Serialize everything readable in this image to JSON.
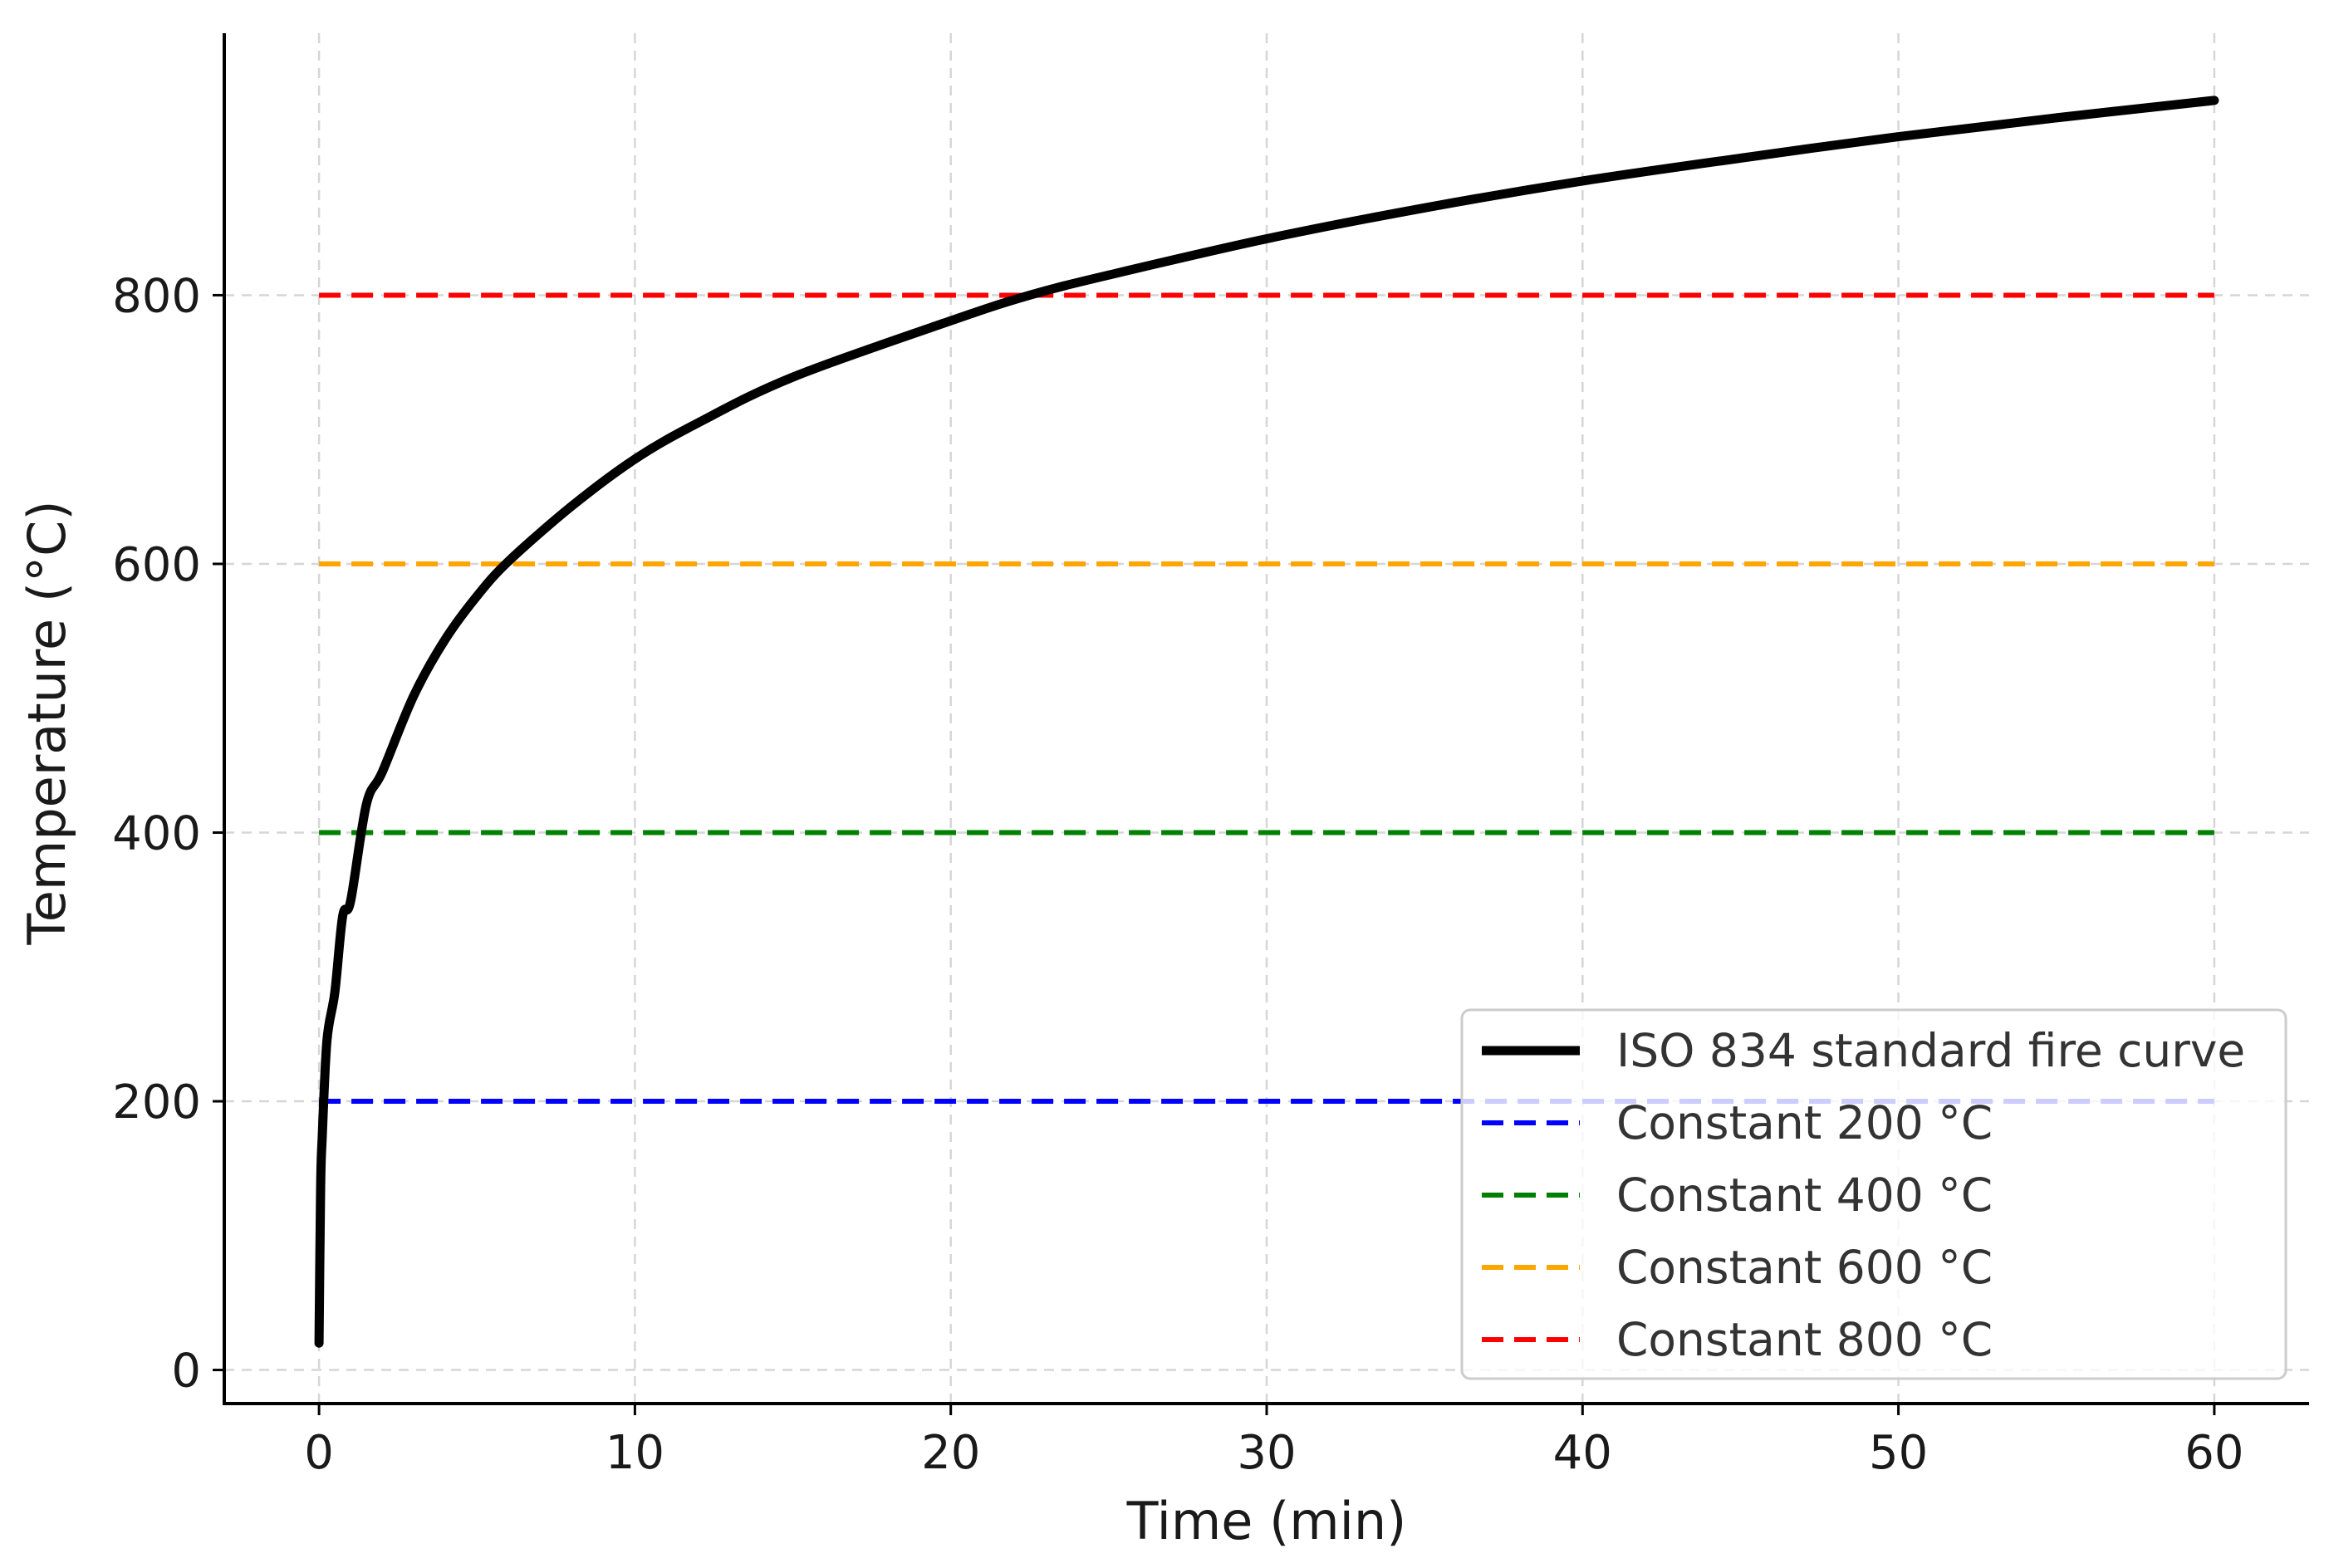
{
  "chart_data": {
    "type": "line",
    "title": "",
    "xlabel": "Time (min)",
    "ylabel": "Temperature (°C)",
    "xlim": [
      -3,
      63
    ],
    "ylim": [
      -25,
      995
    ],
    "xticks": [
      0,
      10,
      20,
      30,
      40,
      50,
      60
    ],
    "yticks": [
      0,
      200,
      400,
      600,
      800
    ],
    "grid": true,
    "legend_position": "lower right",
    "series": [
      {
        "name": "ISO 834 standard fire curve",
        "style": "solid",
        "color": "#000000",
        "x": [
          0,
          0.05,
          0.1,
          0.25,
          0.5,
          0.75,
          1,
          1.5,
          2,
          3,
          4,
          5,
          6,
          8,
          10,
          12,
          15,
          20,
          22.5,
          25,
          30,
          35,
          40,
          45,
          50,
          55,
          60
        ],
        "y": [
          20,
          135,
          173,
          245,
          281,
          338,
          349,
          421,
          445,
          502,
          544,
          576,
          602,
          643,
          678,
          705,
          739,
          781,
          800,
          815,
          842,
          865,
          885,
          902,
          918,
          932,
          945
        ]
      },
      {
        "name": "Constant 200 °C",
        "style": "dashed",
        "color": "#0000ff",
        "x": [
          0,
          60
        ],
        "y": [
          200,
          200
        ]
      },
      {
        "name": "Constant 400 °C",
        "style": "dashed",
        "color": "#008000",
        "x": [
          0,
          60
        ],
        "y": [
          400,
          400
        ]
      },
      {
        "name": "Constant 600 °C",
        "style": "dashed",
        "color": "#ffa500",
        "x": [
          0,
          60
        ],
        "y": [
          600,
          600
        ]
      },
      {
        "name": "Constant 800 °C",
        "style": "dashed",
        "color": "#ff0000",
        "x": [
          0,
          60
        ],
        "y": [
          800,
          800
        ]
      }
    ]
  }
}
